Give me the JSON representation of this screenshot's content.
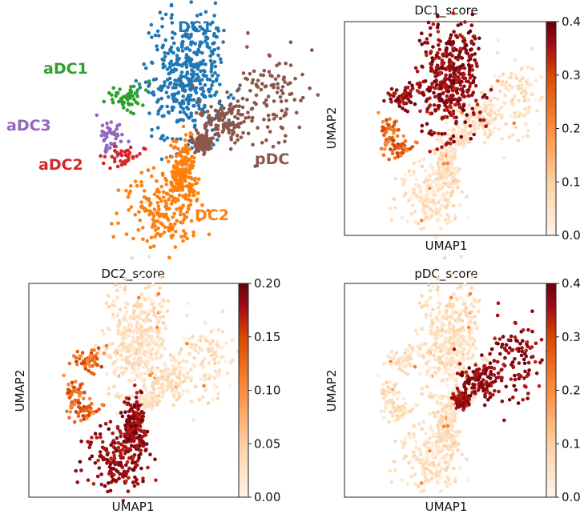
{
  "chart_data": [
    {
      "type": "scatter",
      "title": "",
      "cluster_labels": [
        {
          "name": "DC1",
          "color": "#1f77b4"
        },
        {
          "name": "aDC1",
          "color": "#2ca02c"
        },
        {
          "name": "aDC3",
          "color": "#9467bd"
        },
        {
          "name": "aDC2",
          "color": "#d62728"
        },
        {
          "name": "pDC",
          "color": "#8c564b"
        },
        {
          "name": "DC2",
          "color": "#ff7f0e"
        }
      ],
      "legend": "on data",
      "axes_visible": false
    },
    {
      "type": "scatter",
      "title": "DC1_score",
      "xlabel": "UMAP1",
      "ylabel": "UMAP2",
      "colorbar": {
        "ticks": [
          "0.0",
          "0.1",
          "0.2",
          "0.3",
          "0.4"
        ],
        "range": [
          0.0,
          0.4
        ]
      },
      "colormap": "Oranges-Reds",
      "high_in": "DC1"
    },
    {
      "type": "scatter",
      "title": "DC2_score",
      "xlabel": "UMAP1",
      "ylabel": "UMAP2",
      "colorbar": {
        "ticks": [
          "0.00",
          "0.05",
          "0.10",
          "0.15",
          "0.20"
        ],
        "range": [
          0.0,
          0.2
        ]
      },
      "colormap": "Oranges-Reds",
      "high_in": "DC2"
    },
    {
      "type": "scatter",
      "title": "pDC_score",
      "xlabel": "UMAP1",
      "ylabel": "UMAP2",
      "colorbar": {
        "ticks": [
          "0.0",
          "0.1",
          "0.2",
          "0.3",
          "0.4"
        ],
        "range": [
          0.0,
          0.4
        ]
      },
      "colormap": "Oranges-Reds",
      "high_in": "pDC"
    }
  ]
}
